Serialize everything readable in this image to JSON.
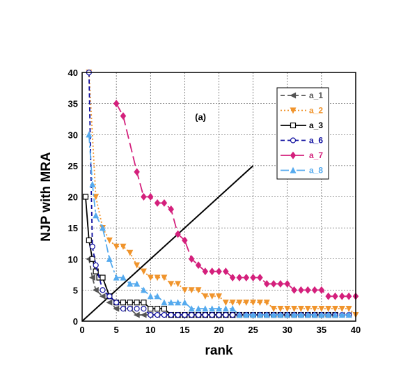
{
  "chart_data": {
    "type": "scatter",
    "panel_label": "(a)",
    "xlabel": "rank",
    "ylabel": "NJP with MRA",
    "xlim": [
      0,
      40
    ],
    "ylim": [
      0,
      40
    ],
    "xticks": [
      0,
      5,
      10,
      15,
      20,
      25,
      30,
      35,
      40
    ],
    "yticks": [
      0,
      5,
      10,
      15,
      20,
      25,
      30,
      35,
      40
    ],
    "grid": true,
    "legend_position": "top-right",
    "reference_line": {
      "x": [
        0,
        25
      ],
      "y": [
        0,
        25
      ]
    },
    "series": [
      {
        "name": "a_1",
        "color": "#555555",
        "marker": "triangle-left",
        "marker_fill": "filled",
        "line": "dashed",
        "x": [
          1,
          1.5,
          2,
          3,
          4,
          5,
          6,
          7,
          8,
          9,
          10,
          11,
          12,
          13,
          14,
          15,
          16,
          17,
          18,
          19,
          20,
          21,
          22,
          23,
          24,
          25,
          26,
          27,
          28,
          29,
          30,
          31,
          32,
          33,
          34,
          35,
          36,
          37,
          38,
          39
        ],
        "y": [
          10,
          7,
          5,
          4,
          3,
          2,
          2,
          2,
          1,
          1,
          1,
          1,
          1,
          1,
          1,
          1,
          1,
          1,
          1,
          1,
          1,
          1,
          1,
          1,
          1,
          1,
          1,
          1,
          1,
          1,
          1,
          1,
          1,
          1,
          1,
          1,
          1,
          1,
          1,
          1
        ]
      },
      {
        "name": "a_2",
        "color": "#F0942C",
        "marker": "triangle-down",
        "marker_fill": "filled",
        "line": "dotted",
        "x": [
          1,
          2,
          3,
          4,
          5,
          6,
          7,
          8,
          9,
          10,
          11,
          12,
          13,
          14,
          15,
          16,
          17,
          18,
          19,
          20,
          21,
          22,
          23,
          24,
          25,
          26,
          27,
          28,
          29,
          30,
          31,
          32,
          33,
          34,
          35,
          36,
          37,
          38,
          39,
          40
        ],
        "y": [
          40,
          20,
          15,
          13,
          12,
          12,
          11,
          9,
          8,
          7,
          7,
          7,
          6,
          6,
          5,
          5,
          5,
          4,
          4,
          4,
          3,
          3,
          3,
          3,
          3,
          3,
          3,
          2,
          2,
          2,
          2,
          2,
          2,
          2,
          2,
          2,
          2,
          2,
          2,
          1
        ]
      },
      {
        "name": "a_3",
        "color": "#000000",
        "marker": "square",
        "marker_fill": "open",
        "line": "solid",
        "x": [
          0.5,
          1,
          1.5,
          2,
          2.5,
          3,
          4,
          5,
          6,
          7,
          8,
          9,
          10,
          11,
          12,
          13,
          14,
          15,
          16,
          17,
          18,
          19,
          20,
          21,
          22,
          23,
          24,
          25,
          26,
          27,
          28,
          29,
          30,
          31,
          32,
          33,
          34,
          35,
          36,
          37
        ],
        "y": [
          20,
          13,
          10,
          8,
          7,
          7,
          4,
          3,
          3,
          3,
          3,
          3,
          2,
          2,
          2,
          1,
          1,
          1,
          1,
          1,
          1,
          1,
          1,
          1,
          1,
          1,
          1,
          1,
          1,
          1,
          1,
          1,
          1,
          1,
          1,
          1,
          1,
          1,
          1,
          1
        ]
      },
      {
        "name": "a_6",
        "color": "#1010A0",
        "marker": "circle",
        "marker_fill": "open",
        "line": "dashed",
        "x": [
          1,
          1.5,
          2,
          3,
          4,
          5,
          6,
          7,
          8,
          9,
          10,
          11,
          12,
          13,
          14,
          15,
          16,
          17,
          18,
          19,
          20,
          21,
          22,
          23,
          24,
          25,
          26,
          27,
          28,
          29,
          30,
          31,
          32,
          33,
          34,
          35,
          36,
          37,
          38,
          39
        ],
        "y": [
          40,
          12,
          9,
          5,
          4,
          3,
          2,
          2,
          2,
          2,
          1,
          1,
          1,
          1,
          1,
          1,
          1,
          1,
          1,
          1,
          1,
          1,
          1,
          1,
          1,
          1,
          1,
          1,
          1,
          1,
          1,
          1,
          1,
          1,
          1,
          1,
          1,
          1,
          1,
          1
        ]
      },
      {
        "name": "a_7",
        "color": "#D4207C",
        "marker": "diamond",
        "marker_fill": "filled",
        "line": "long-dash",
        "x": [
          5,
          6,
          8,
          9,
          10,
          11,
          12,
          13,
          14,
          15,
          16,
          17,
          18,
          19,
          20,
          21,
          22,
          23,
          24,
          25,
          26,
          27,
          28,
          29,
          30,
          31,
          32,
          33,
          34,
          35,
          36,
          37,
          38,
          39,
          40
        ],
        "y": [
          35,
          33,
          24,
          20,
          20,
          19,
          19,
          18,
          14,
          13,
          10,
          9,
          8,
          8,
          8,
          8,
          7,
          7,
          7,
          7,
          7,
          6,
          6,
          6,
          6,
          5,
          5,
          5,
          5,
          5,
          4,
          4,
          4,
          4,
          4
        ]
      },
      {
        "name": "a_8",
        "color": "#55AAEE",
        "marker": "triangle-up",
        "marker_fill": "filled",
        "line": "dash-dot",
        "x": [
          1,
          1.5,
          2,
          3,
          4,
          5,
          6,
          7,
          8,
          9,
          10,
          11,
          12,
          13,
          14,
          15,
          16,
          17,
          18,
          19,
          20,
          21,
          22,
          23,
          24,
          25,
          26,
          27,
          28,
          29,
          30,
          31,
          32,
          33,
          34,
          35,
          36,
          37,
          38,
          39
        ],
        "y": [
          30,
          22,
          17,
          15,
          10,
          7,
          7,
          6,
          6,
          5,
          4,
          4,
          3,
          3,
          3,
          3,
          2,
          2,
          2,
          2,
          2,
          2,
          2,
          1,
          1,
          1,
          1,
          1,
          1,
          1,
          1,
          1,
          1,
          1,
          1,
          1,
          1,
          1,
          1,
          1
        ]
      }
    ]
  }
}
